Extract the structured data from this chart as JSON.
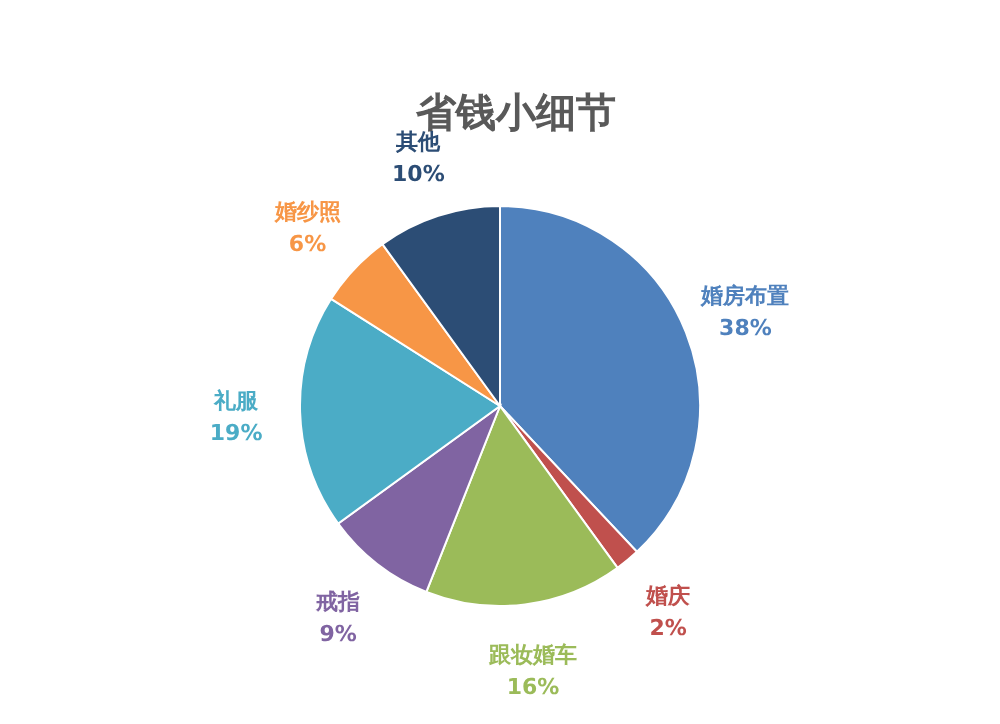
{
  "chart_data": {
    "type": "pie",
    "title": "省钱小细节",
    "categories": [
      "婚房布置",
      "婚庆",
      "跟妆婚车",
      "戒指",
      "礼服",
      "婚纱照",
      "其他"
    ],
    "values": [
      38,
      2,
      16,
      9,
      19,
      6,
      10
    ],
    "colors": [
      "#4f81bd",
      "#c0504d",
      "#9bbb59",
      "#8064a2",
      "#4bacc6",
      "#f79646",
      "#2c4d75"
    ],
    "value_labels": [
      "38%",
      "2%",
      "16%",
      "9%",
      "19%",
      "6%",
      "10%"
    ]
  }
}
